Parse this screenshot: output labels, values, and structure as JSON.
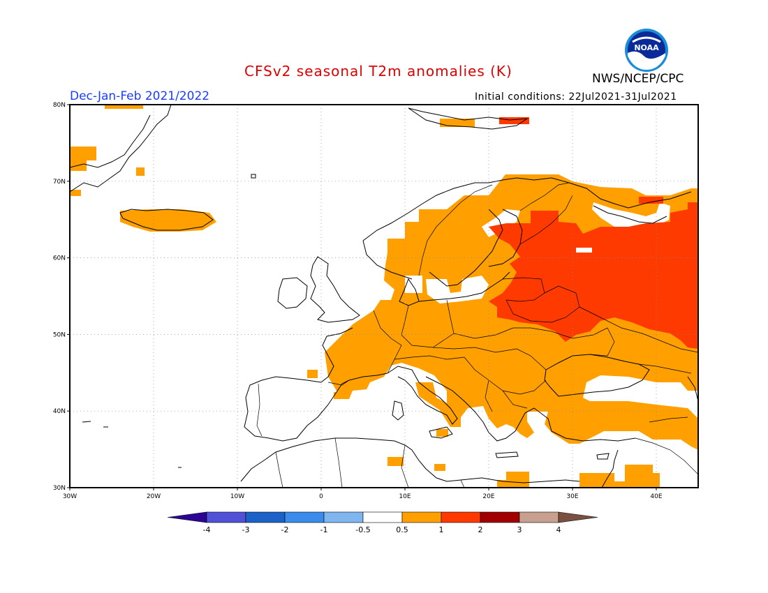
{
  "title": "CFSv2 seasonal T2m anomalies (K)",
  "period": "Dec-Jan-Feb 2021/2022",
  "initial_conditions": "Initial conditions: 22Jul2021-31Jul2021",
  "organization": "NWS/NCEP/CPC",
  "logo_text": "NOAA",
  "map": {
    "lon_range": [
      -30,
      45
    ],
    "lat_range": [
      30,
      80
    ],
    "lon_ticks": [
      "30W",
      "20W",
      "10W",
      "0",
      "10E",
      "20E",
      "30E",
      "40E"
    ],
    "lat_ticks": [
      "80N",
      "70N",
      "60N",
      "50N",
      "40N",
      "30N"
    ],
    "grid": true
  },
  "colorbar": {
    "labels": [
      "-4",
      "-3",
      "-2",
      "-1",
      "-0.5",
      "0.5",
      "1",
      "2",
      "3",
      "4"
    ],
    "colors": [
      "#2c0596",
      "#5151d8",
      "#1b61c8",
      "#3a8bea",
      "#7fb6f0",
      "#ffffff",
      "#ffa000",
      "#ff3a00",
      "#a00000",
      "#c8a090",
      "#7a5040"
    ]
  },
  "anomaly_colors": {
    "0.5-1": "#ffa000",
    "1-2": "#ff3a00"
  }
}
